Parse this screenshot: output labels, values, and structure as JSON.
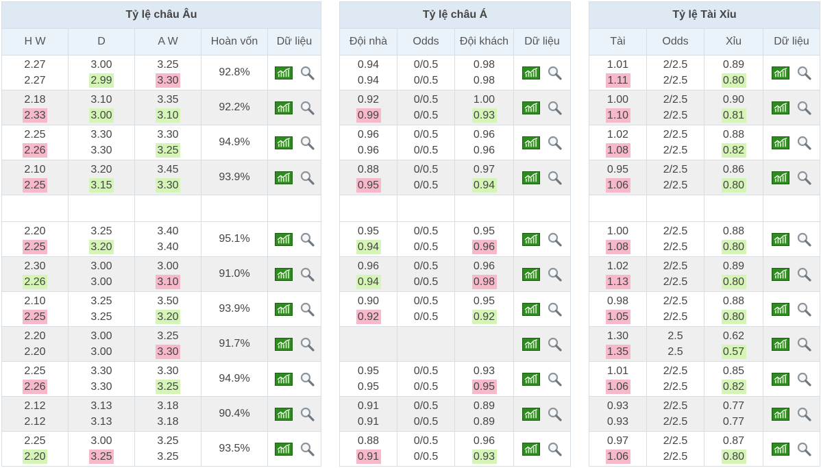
{
  "panels": {
    "eu": {
      "title": "Tỷ lệ châu Âu",
      "headers": [
        "H W",
        "D",
        "A W",
        "Hoàn vốn",
        "Dữ liệu"
      ],
      "rows": [
        {
          "vals": [
            [
              "2.27",
              "2.27",
              ""
            ],
            [
              "3.00",
              "2.99",
              "down"
            ],
            [
              "3.25",
              "3.30",
              "up"
            ]
          ],
          "payout": "92.8%"
        },
        {
          "vals": [
            [
              "2.18",
              "2.33",
              "up"
            ],
            [
              "3.10",
              "3.00",
              "down"
            ],
            [
              "3.35",
              "3.10",
              "down"
            ]
          ],
          "payout": "92.2%"
        },
        {
          "vals": [
            [
              "2.25",
              "2.26",
              "up"
            ],
            [
              "3.30",
              "3.30",
              ""
            ],
            [
              "3.30",
              "3.25",
              "down"
            ]
          ],
          "payout": "94.9%"
        },
        {
          "vals": [
            [
              "2.10",
              "2.25",
              "up"
            ],
            [
              "3.20",
              "3.15",
              "down"
            ],
            [
              "3.45",
              "3.30",
              "down"
            ]
          ],
          "payout": "93.9%"
        },
        null,
        {
          "vals": [
            [
              "2.20",
              "2.25",
              "up"
            ],
            [
              "3.25",
              "3.20",
              "down"
            ],
            [
              "3.40",
              "3.40",
              ""
            ]
          ],
          "payout": "95.1%"
        },
        {
          "vals": [
            [
              "2.30",
              "2.26",
              "down"
            ],
            [
              "3.00",
              "3.00",
              ""
            ],
            [
              "3.00",
              "3.10",
              "up"
            ]
          ],
          "payout": "91.0%"
        },
        {
          "vals": [
            [
              "2.10",
              "2.25",
              "up"
            ],
            [
              "3.25",
              "3.25",
              ""
            ],
            [
              "3.50",
              "3.20",
              "down"
            ]
          ],
          "payout": "93.9%"
        },
        {
          "vals": [
            [
              "2.20",
              "2.20",
              ""
            ],
            [
              "3.00",
              "3.00",
              ""
            ],
            [
              "3.25",
              "3.30",
              "up"
            ]
          ],
          "payout": "91.7%"
        },
        {
          "vals": [
            [
              "2.25",
              "2.26",
              "up"
            ],
            [
              "3.30",
              "3.30",
              ""
            ],
            [
              "3.30",
              "3.25",
              "down"
            ]
          ],
          "payout": "94.9%"
        },
        {
          "vals": [
            [
              "2.12",
              "2.12",
              ""
            ],
            [
              "3.13",
              "3.13",
              ""
            ],
            [
              "3.18",
              "3.18",
              ""
            ]
          ],
          "payout": "90.4%"
        },
        {
          "vals": [
            [
              "2.25",
              "2.20",
              "down"
            ],
            [
              "3.00",
              "3.25",
              "up"
            ],
            [
              "3.25",
              "3.25",
              ""
            ]
          ],
          "payout": "93.5%"
        }
      ]
    },
    "as": {
      "title": "Tỷ lệ châu Á",
      "headers": [
        "Đội nhà",
        "Odds",
        "Đội khách",
        "Dữ liệu"
      ],
      "rows": [
        {
          "vals": [
            [
              "0.94",
              "0.94",
              ""
            ],
            [
              "0/0.5",
              "0/0.5",
              ""
            ],
            [
              "0.98",
              "0.98",
              ""
            ]
          ]
        },
        {
          "vals": [
            [
              "0.92",
              "0.99",
              "up"
            ],
            [
              "0/0.5",
              "0/0.5",
              ""
            ],
            [
              "1.00",
              "0.93",
              "down"
            ]
          ]
        },
        {
          "vals": [
            [
              "0.96",
              "0.96",
              ""
            ],
            [
              "0/0.5",
              "0/0.5",
              ""
            ],
            [
              "0.96",
              "0.96",
              ""
            ]
          ]
        },
        {
          "vals": [
            [
              "0.88",
              "0.95",
              "up"
            ],
            [
              "0/0.5",
              "0/0.5",
              ""
            ],
            [
              "0.97",
              "0.94",
              "down"
            ]
          ]
        },
        null,
        {
          "vals": [
            [
              "0.95",
              "0.94",
              "down"
            ],
            [
              "0/0.5",
              "0/0.5",
              ""
            ],
            [
              "0.95",
              "0.96",
              "up"
            ]
          ]
        },
        {
          "vals": [
            [
              "0.96",
              "0.94",
              "down"
            ],
            [
              "0/0.5",
              "0/0.5",
              ""
            ],
            [
              "0.96",
              "0.98",
              "up"
            ]
          ]
        },
        {
          "vals": [
            [
              "0.90",
              "0.92",
              "up"
            ],
            [
              "0/0.5",
              "0/0.5",
              ""
            ],
            [
              "0.95",
              "0.92",
              "down"
            ]
          ]
        },
        "blank",
        {
          "vals": [
            [
              "0.95",
              "0.95",
              ""
            ],
            [
              "0/0.5",
              "0/0.5",
              ""
            ],
            [
              "0.93",
              "0.95",
              "up"
            ]
          ]
        },
        {
          "vals": [
            [
              "0.91",
              "0.91",
              ""
            ],
            [
              "0/0.5",
              "0/0.5",
              ""
            ],
            [
              "0.89",
              "0.89",
              ""
            ]
          ]
        },
        {
          "vals": [
            [
              "0.88",
              "0.91",
              "up"
            ],
            [
              "0/0.5",
              "0/0.5",
              ""
            ],
            [
              "0.96",
              "0.93",
              "down"
            ]
          ]
        }
      ]
    },
    "ou": {
      "title": "Tỷ lệ Tài Xỉu",
      "headers": [
        "Tài",
        "Odds",
        "Xỉu",
        "Dữ liệu"
      ],
      "rows": [
        {
          "vals": [
            [
              "1.01",
              "1.11",
              "up"
            ],
            [
              "2/2.5",
              "2/2.5",
              ""
            ],
            [
              "0.89",
              "0.80",
              "down"
            ]
          ]
        },
        {
          "vals": [
            [
              "1.00",
              "1.10",
              "up"
            ],
            [
              "2/2.5",
              "2/2.5",
              ""
            ],
            [
              "0.90",
              "0.81",
              "down"
            ]
          ]
        },
        {
          "vals": [
            [
              "1.02",
              "1.08",
              "up"
            ],
            [
              "2/2.5",
              "2/2.5",
              ""
            ],
            [
              "0.88",
              "0.82",
              "down"
            ]
          ]
        },
        {
          "vals": [
            [
              "0.95",
              "1.06",
              "up"
            ],
            [
              "2/2.5",
              "2/2.5",
              ""
            ],
            [
              "0.86",
              "0.80",
              "down"
            ]
          ]
        },
        null,
        {
          "vals": [
            [
              "1.00",
              "1.08",
              "up"
            ],
            [
              "2/2.5",
              "2/2.5",
              ""
            ],
            [
              "0.88",
              "0.80",
              "down"
            ]
          ]
        },
        {
          "vals": [
            [
              "1.02",
              "1.13",
              "up"
            ],
            [
              "2/2.5",
              "2/2.5",
              ""
            ],
            [
              "0.89",
              "0.80",
              "down"
            ]
          ]
        },
        {
          "vals": [
            [
              "0.98",
              "1.05",
              "up"
            ],
            [
              "2/2.5",
              "2/2.5",
              ""
            ],
            [
              "0.88",
              "0.80",
              "down"
            ]
          ]
        },
        {
          "vals": [
            [
              "1.30",
              "1.35",
              "up"
            ],
            [
              "2.5",
              "2.5",
              ""
            ],
            [
              "0.62",
              "0.57",
              "down"
            ]
          ]
        },
        {
          "vals": [
            [
              "1.01",
              "1.06",
              "up"
            ],
            [
              "2/2.5",
              "2/2.5",
              ""
            ],
            [
              "0.85",
              "0.82",
              "down"
            ]
          ]
        },
        {
          "vals": [
            [
              "0.93",
              "0.93",
              ""
            ],
            [
              "2/2.5",
              "2/2.5",
              ""
            ],
            [
              "0.77",
              "0.77",
              ""
            ]
          ]
        },
        {
          "vals": [
            [
              "0.97",
              "1.06",
              "up"
            ],
            [
              "2/2.5",
              "2/2.5",
              ""
            ],
            [
              "0.87",
              "0.80",
              "down"
            ]
          ]
        }
      ]
    }
  },
  "icons": {
    "chart": "line-chart-icon",
    "search": "magnifier-icon"
  },
  "colors": {
    "up": "#f7b9c9",
    "down": "#d4f5b6",
    "header": "#dfe9f3",
    "shade": "#efefef"
  }
}
